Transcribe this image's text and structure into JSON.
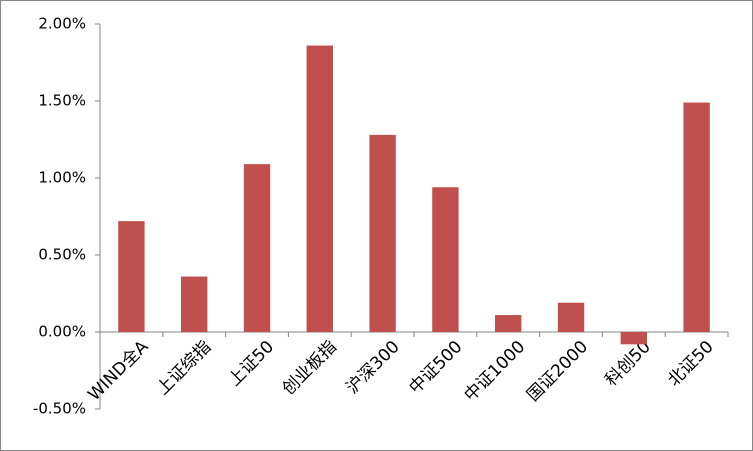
{
  "chart_data": {
    "type": "bar",
    "categories": [
      "WIND全A",
      "上证综指",
      "上证50",
      "创业板指",
      "沪深300",
      "中证500",
      "中证1000",
      "国证2000",
      "科创50",
      "北证50"
    ],
    "values": [
      0.72,
      0.36,
      1.09,
      1.86,
      1.28,
      0.94,
      0.11,
      0.19,
      -0.08,
      1.49
    ],
    "color": "#c0504d",
    "ylim": [
      -0.5,
      2.0
    ],
    "yticks": [
      {
        "value": -0.5,
        "label": "-0.50%"
      },
      {
        "value": 0,
        "label": "0.00%"
      },
      {
        "value": 0.5,
        "label": "0.50%"
      },
      {
        "value": 1.0,
        "label": "1.00%"
      },
      {
        "value": 1.5,
        "label": "1.50%"
      },
      {
        "value": 2.0,
        "label": "2.00%"
      }
    ],
    "grid": false
  }
}
